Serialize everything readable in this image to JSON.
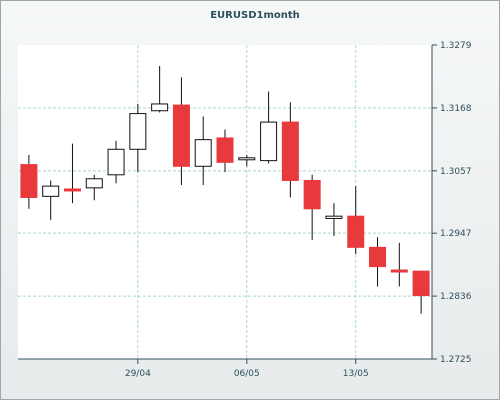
{
  "chart_data": {
    "type": "candlestick",
    "title": "EURUSD1month",
    "xlabel": "",
    "ylabel": "",
    "ylim": [
      1.2725,
      1.3279
    ],
    "y_ticks": [
      "1.2725",
      "1.2836",
      "1.2947",
      "1.3057",
      "1.3168",
      "1.3279"
    ],
    "x_tick_labels": [
      {
        "label": "29/04",
        "index": 5
      },
      {
        "label": "06/05",
        "index": 10
      },
      {
        "label": "13/05",
        "index": 15
      }
    ],
    "grid": true,
    "colors": {
      "up": "#ffffff",
      "down": "#e8393d",
      "outline": "#111111",
      "grid": "#a8d5d5",
      "axis": "#2d4f5c"
    },
    "candles": [
      {
        "open": 1.3068,
        "high": 1.3085,
        "low": 1.299,
        "close": 1.301
      },
      {
        "open": 1.3012,
        "high": 1.304,
        "low": 1.297,
        "close": 1.303
      },
      {
        "open": 1.3025,
        "high": 1.3105,
        "low": 1.3,
        "close": 1.3022
      },
      {
        "open": 1.3027,
        "high": 1.305,
        "low": 1.3005,
        "close": 1.3043
      },
      {
        "open": 1.305,
        "high": 1.311,
        "low": 1.3035,
        "close": 1.3095
      },
      {
        "open": 1.3095,
        "high": 1.3175,
        "low": 1.3055,
        "close": 1.3158
      },
      {
        "open": 1.3163,
        "high": 1.3242,
        "low": 1.316,
        "close": 1.3175
      },
      {
        "open": 1.3173,
        "high": 1.3222,
        "low": 1.3032,
        "close": 1.3065
      },
      {
        "open": 1.3065,
        "high": 1.3153,
        "low": 1.3032,
        "close": 1.3112
      },
      {
        "open": 1.3115,
        "high": 1.313,
        "low": 1.3055,
        "close": 1.3072
      },
      {
        "open": 1.3077,
        "high": 1.3085,
        "low": 1.3065,
        "close": 1.308
      },
      {
        "open": 1.3075,
        "high": 1.3197,
        "low": 1.307,
        "close": 1.3143
      },
      {
        "open": 1.3143,
        "high": 1.3178,
        "low": 1.301,
        "close": 1.304
      },
      {
        "open": 1.304,
        "high": 1.305,
        "low": 1.2935,
        "close": 1.299
      },
      {
        "open": 1.2973,
        "high": 1.3,
        "low": 1.2942,
        "close": 1.2977
      },
      {
        "open": 1.2977,
        "high": 1.303,
        "low": 1.291,
        "close": 1.2922
      },
      {
        "open": 1.2922,
        "high": 1.294,
        "low": 1.2853,
        "close": 1.2888
      },
      {
        "open": 1.2882,
        "high": 1.293,
        "low": 1.2853,
        "close": 1.288
      },
      {
        "open": 1.288,
        "high": 1.288,
        "low": 1.2805,
        "close": 1.2837
      }
    ]
  }
}
